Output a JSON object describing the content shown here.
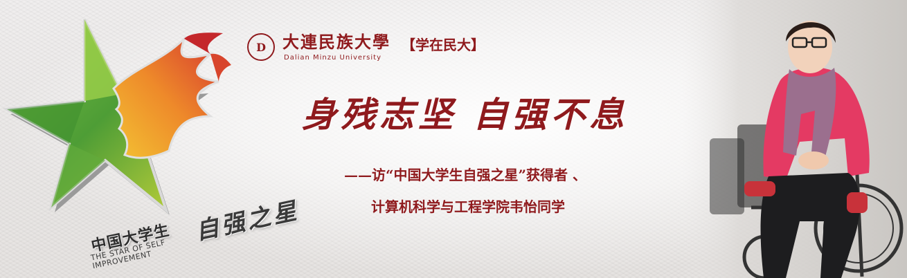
{
  "emblem": {
    "title_cn": "中国大学生",
    "title_en": "THE STAR OF SELF IMPROVEMENT",
    "calligraphy": "自强之星"
  },
  "university": {
    "seal_glyph": "D",
    "name": "大連民族大學",
    "name_en": "Dalian Minzu University",
    "column_tag": "【学在民大】"
  },
  "headline": "身残志坚  自强不息",
  "subtitle": {
    "line1": "——访“中国大学生自强之星”获得者 、",
    "line2": "计算机科学与工程学院韦怡同学"
  },
  "colors": {
    "brand_red": "#8f1a1d",
    "emblem_green": "#5aa63a",
    "emblem_orange": "#ee8a2a",
    "emblem_red": "#d63a2f",
    "scarf_purple": "#9b6f8e",
    "jacket_pink": "#e43a63"
  }
}
